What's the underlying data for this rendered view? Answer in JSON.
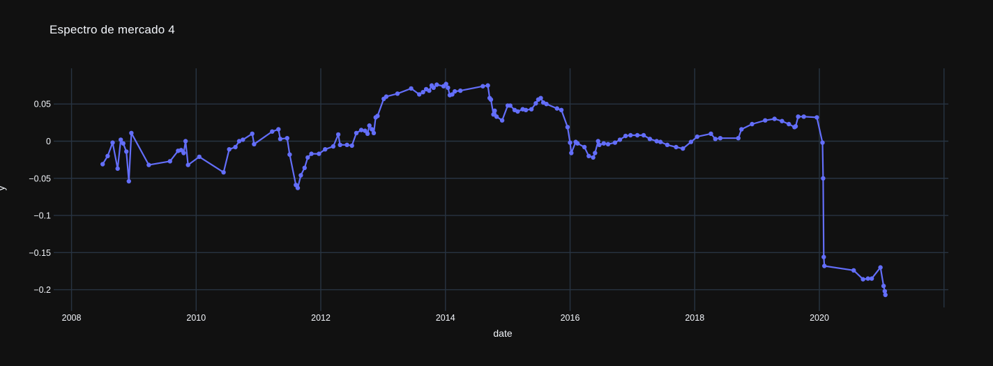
{
  "figure": {
    "title": "Espectro de mercado 4",
    "x_axis_label": "date",
    "y_axis_label": "y"
  },
  "chart_data": {
    "type": "line",
    "title": "Espectro de mercado 4",
    "xlabel": "date",
    "ylabel": "y",
    "x_units": "decimal_year",
    "xlim": [
      2007.77,
      2022.07
    ],
    "ylim": [
      -0.2239,
      0.0981
    ],
    "grid": true,
    "legend_position": "none",
    "markers": true,
    "background_color": "#111111",
    "grid_color": "#283442",
    "text_color": "#f2f5fa",
    "line_color": "#636efa",
    "marker_color": "#636efa",
    "xticks": [
      {
        "label": "2008",
        "value": 2008
      },
      {
        "label": "2010",
        "value": 2010
      },
      {
        "label": "2012",
        "value": 2012
      },
      {
        "label": "2014",
        "value": 2014
      },
      {
        "label": "2016",
        "value": 2016
      },
      {
        "label": "2018",
        "value": 2018
      },
      {
        "label": "2020",
        "value": 2020
      },
      {
        "label": "",
        "value": 2022
      }
    ],
    "yticks": [
      {
        "label": "0.05",
        "value": 0.05
      },
      {
        "label": "0",
        "value": 0
      },
      {
        "label": "−0.05",
        "value": -0.05
      },
      {
        "label": "−0.1",
        "value": -0.1
      },
      {
        "label": "−0.15",
        "value": -0.15
      },
      {
        "label": "−0.2",
        "value": -0.2
      }
    ],
    "series": [
      {
        "name": "y",
        "x": [
          2008.5,
          2008.58,
          2008.66,
          2008.74,
          2008.79,
          2008.83,
          2008.88,
          2008.92,
          2008.96,
          2009.24,
          2009.58,
          2009.71,
          2009.76,
          2009.8,
          2009.83,
          2009.87,
          2010.05,
          2010.44,
          2010.53,
          2010.63,
          2010.69,
          2010.75,
          2010.9,
          2010.93,
          2011.22,
          2011.32,
          2011.35,
          2011.46,
          2011.5,
          2011.6,
          2011.63,
          2011.68,
          2011.74,
          2011.79,
          2011.85,
          2011.97,
          2012.07,
          2012.2,
          2012.28,
          2012.31,
          2012.42,
          2012.5,
          2012.57,
          2012.65,
          2012.71,
          2012.75,
          2012.78,
          2012.82,
          2012.85,
          2012.88,
          2012.91,
          2013.01,
          2013.05,
          2013.23,
          2013.45,
          2013.58,
          2013.64,
          2013.69,
          2013.74,
          2013.78,
          2013.81,
          2013.86,
          2013.97,
          2014.01,
          2014.04,
          2014.07,
          2014.11,
          2014.15,
          2014.24,
          2014.6,
          2014.68,
          2014.71,
          2014.73,
          2014.77,
          2014.79,
          2014.82,
          2014.91,
          2015.0,
          2015.04,
          2015.11,
          2015.16,
          2015.24,
          2015.29,
          2015.38,
          2015.45,
          2015.49,
          2015.53,
          2015.57,
          2015.62,
          2015.79,
          2015.86,
          2015.96,
          2016.0,
          2016.02,
          2016.09,
          2016.12,
          2016.23,
          2016.3,
          2016.37,
          2016.4,
          2016.45,
          2016.47,
          2016.54,
          2016.61,
          2016.72,
          2016.8,
          2016.89,
          2016.97,
          2017.08,
          2017.18,
          2017.28,
          2017.39,
          2017.45,
          2017.56,
          2017.7,
          2017.81,
          2017.94,
          2018.04,
          2018.26,
          2018.33,
          2018.41,
          2018.7,
          2018.75,
          2018.92,
          2019.13,
          2019.28,
          2019.4,
          2019.51,
          2019.6,
          2019.62,
          2019.66,
          2019.75,
          2019.96,
          2020.05,
          2020.06,
          2020.07,
          2020.08,
          2020.55,
          2020.7,
          2020.78,
          2020.84,
          2020.98,
          2021.03,
          2021.05,
          2021.06
        ],
        "y": [
          -0.031,
          -0.02,
          -0.002,
          -0.037,
          0.002,
          -0.003,
          -0.014,
          -0.054,
          0.011,
          -0.032,
          -0.027,
          -0.013,
          -0.012,
          -0.016,
          0.0,
          -0.032,
          -0.021,
          -0.042,
          -0.011,
          -0.008,
          0.0,
          0.002,
          0.01,
          -0.004,
          0.013,
          0.016,
          0.003,
          0.004,
          -0.018,
          -0.059,
          -0.063,
          -0.046,
          -0.036,
          -0.022,
          -0.017,
          -0.017,
          -0.011,
          -0.007,
          0.009,
          -0.005,
          -0.005,
          -0.006,
          0.011,
          0.015,
          0.014,
          0.01,
          0.021,
          0.016,
          0.011,
          0.032,
          0.034,
          0.057,
          0.06,
          0.064,
          0.071,
          0.063,
          0.066,
          0.07,
          0.068,
          0.075,
          0.072,
          0.076,
          0.074,
          0.077,
          0.072,
          0.062,
          0.063,
          0.067,
          0.068,
          0.074,
          0.075,
          0.058,
          0.056,
          0.036,
          0.041,
          0.033,
          0.028,
          0.048,
          0.048,
          0.042,
          0.04,
          0.043,
          0.042,
          0.043,
          0.051,
          0.056,
          0.058,
          0.052,
          0.05,
          0.044,
          0.042,
          0.019,
          -0.002,
          -0.016,
          -0.001,
          -0.003,
          -0.008,
          -0.02,
          -0.022,
          -0.016,
          0.0,
          -0.005,
          -0.003,
          -0.004,
          -0.002,
          0.002,
          0.007,
          0.008,
          0.008,
          0.008,
          0.003,
          0.0,
          -0.001,
          -0.005,
          -0.008,
          -0.01,
          -0.001,
          0.006,
          0.01,
          0.003,
          0.004,
          0.004,
          0.016,
          0.023,
          0.028,
          0.03,
          0.027,
          0.023,
          0.019,
          0.02,
          0.033,
          0.033,
          0.032,
          -0.002,
          -0.05,
          -0.156,
          -0.168,
          -0.174,
          -0.186,
          -0.185,
          -0.185,
          -0.17,
          -0.195,
          -0.202,
          -0.207
        ]
      }
    ]
  }
}
